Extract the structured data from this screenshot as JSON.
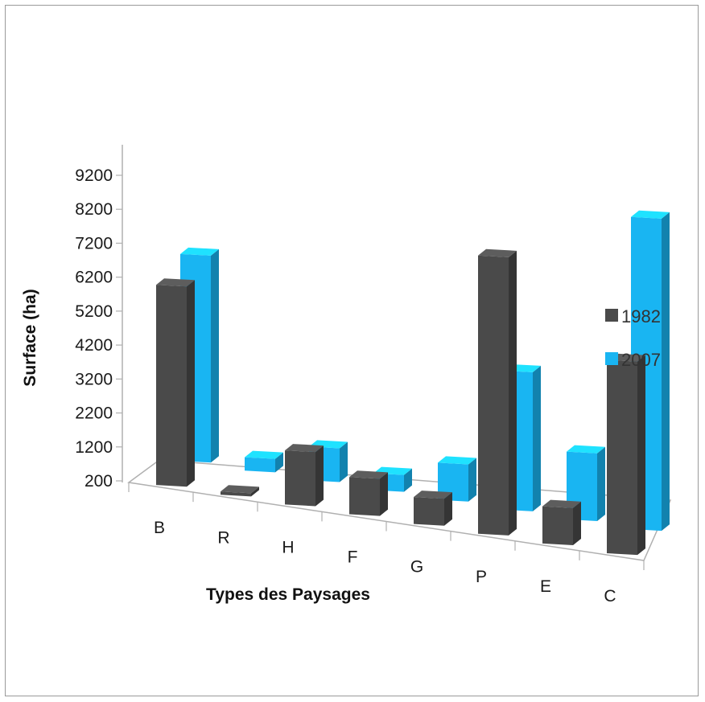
{
  "chart_data": {
    "type": "bar",
    "subtype": "3d-clustered-column",
    "xlabel": "Types des Paysages",
    "ylabel": "Surface (ha)",
    "categories": [
      "B",
      "R",
      "H",
      "F",
      "G",
      "P",
      "E",
      "C"
    ],
    "y_ticks": [
      "200",
      "1200",
      "2200",
      "3200",
      "4200",
      "5200",
      "6200",
      "7200",
      "8200",
      "9200"
    ],
    "ylim": [
      200,
      9200
    ],
    "series": [
      {
        "name": "1982",
        "color": "#4a4a4a",
        "values": [
          6000,
          200,
          1700,
          1200,
          900,
          8300,
          1200,
          5800
        ]
      },
      {
        "name": "2007",
        "color": "#19b5f2",
        "values": [
          6200,
          500,
          1100,
          600,
          1200,
          4200,
          2100,
          9300
        ]
      }
    ],
    "legend": {
      "position": "right"
    },
    "grid": false
  }
}
